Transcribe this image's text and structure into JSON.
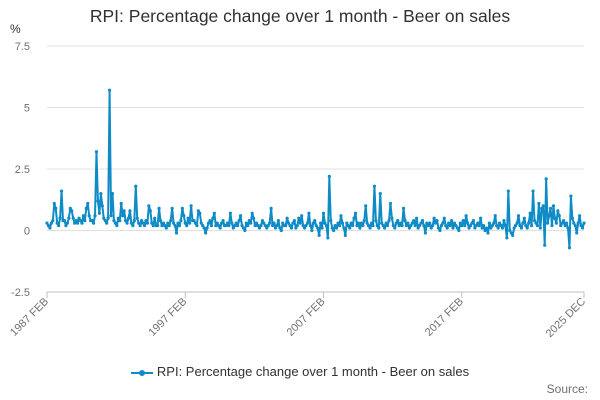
{
  "chart_data": {
    "type": "line",
    "title": "RPI: Percentage change over 1 month - Beer on sales",
    "ylabel": "%",
    "ylim": [
      -2.5,
      7.5
    ],
    "yticks": [
      "-2.5",
      "0",
      "2.5",
      "5",
      "7.5"
    ],
    "xticks": [
      "1987 FEB",
      "1997 FEB",
      "2007 FEB",
      "2017 FEB",
      "2025 DEC"
    ],
    "x_start": "1987 FEB",
    "x_end": "2025 DEC",
    "grid": "horizontal",
    "legend_position": "bottom",
    "color": "#0F8BC6",
    "series": [
      {
        "name": "RPI: Percentage change over 1 month - Beer on sales",
        "values": [
          0.3,
          0.2,
          0.1,
          0.3,
          0.4,
          1.1,
          0.9,
          0.3,
          0.2,
          0.5,
          1.6,
          0.4,
          0.4,
          0.2,
          0.3,
          0.5,
          0.9,
          0.8,
          0.5,
          0.3,
          0.4,
          0.3,
          0.5,
          0.4,
          0.3,
          0.6,
          0.4,
          0.9,
          1.1,
          0.6,
          0.4,
          0.4,
          0.3,
          0.6,
          3.2,
          1.2,
          0.7,
          1.5,
          1.0,
          0.5,
          0.4,
          0.3,
          0.5,
          5.7,
          0.6,
          1.5,
          0.4,
          0.3,
          0.2,
          0.5,
          0.4,
          1.1,
          0.6,
          0.8,
          0.4,
          0.3,
          0.5,
          0.8,
          0.3,
          0.2,
          0.4,
          1.8,
          0.5,
          0.3,
          0.2,
          0.4,
          0.3,
          0.2,
          0.4,
          0.3,
          1.0,
          0.8,
          0.3,
          0.2,
          0.5,
          0.2,
          0.2,
          0.9,
          0.4,
          0.2,
          0.3,
          0.2,
          0.1,
          0.3,
          0.2,
          0.4,
          0.9,
          0.3,
          0.2,
          -0.1,
          0.3,
          0.2,
          0.4,
          0.9,
          0.6,
          0.3,
          0.2,
          0.5,
          0.3,
          1.0,
          0.4,
          0.4,
          0.3,
          0.2,
          0.8,
          0.7,
          0.3,
          0.2,
          0.1,
          -0.1,
          0.1,
          0.3,
          0.4,
          0.2,
          0.5,
          0.7,
          0.2,
          0.3,
          0.2,
          0.1,
          0.3,
          0.4,
          0.2,
          0.2,
          0.3,
          0.2,
          0.7,
          0.3,
          0.1,
          0.2,
          0.3,
          0.2,
          0.4,
          0.6,
          0.2,
          0.1,
          0.0,
          0.3,
          0.2,
          0.4,
          0.3,
          0.7,
          0.5,
          0.2,
          0.3,
          0.2,
          0.1,
          0.2,
          0.4,
          0.3,
          0.2,
          0.1,
          0.2,
          0.3,
          0.9,
          0.2,
          0.3,
          0.1,
          0.2,
          0.4,
          0.1,
          0.0,
          0.3,
          0.2,
          0.2,
          0.5,
          0.3,
          0.2,
          0.1,
          0.3,
          0.4,
          0.1,
          0.2,
          0.5,
          0.3,
          0.6,
          0.2,
          0.1,
          0.2,
          0.3,
          0.7,
          0.2,
          0.0,
          0.3,
          0.4,
          0.2,
          0.1,
          -0.2,
          0.3,
          0.1,
          0.7,
          0.3,
          0.2,
          -0.3,
          2.2,
          0.4,
          0.1,
          0.0,
          0.2,
          0.1,
          0.3,
          0.2,
          0.6,
          0.3,
          0.1,
          -0.2,
          0.3,
          0.2,
          0.1,
          0.3,
          0.2,
          0.5,
          0.7,
          0.2,
          0.3,
          0.1,
          0.3,
          0.2,
          0.4,
          1.0,
          0.3,
          0.2,
          0.1,
          0.3,
          0.2,
          1.8,
          0.4,
          0.2,
          0.1,
          1.5,
          0.3,
          0.2,
          0.1,
          0.3,
          0.2,
          0.4,
          1.1,
          0.5,
          0.2,
          0.1,
          0.3,
          0.4,
          0.2,
          0.3,
          0.2,
          0.9,
          0.4,
          0.2,
          0.3,
          0.1,
          0.2,
          0.3,
          0.4,
          0.2,
          0.5,
          0.1,
          0.2,
          0.3,
          0.4,
          0.2,
          -0.1,
          0.3,
          0.2,
          0.3,
          0.1,
          0.2,
          0.5,
          0.3,
          0.4,
          0.1,
          0.0,
          0.2,
          0.3,
          0.5,
          0.2,
          0.1,
          0.3,
          0.2,
          0.4,
          0.1,
          0.3,
          0.2,
          0.1,
          0.0,
          0.3,
          0.2,
          0.4,
          0.2,
          0.6,
          0.3,
          0.1,
          0.2,
          0.3,
          0.4,
          0.1,
          0.2,
          0.3,
          0.2,
          0.5,
          0.1,
          0.2,
          0.0,
          0.1,
          -0.1,
          0.3,
          0.1,
          0.2,
          0.3,
          0.6,
          0.2,
          0.1,
          0.3,
          0.2,
          0.1,
          0.4,
          0.2,
          -0.3,
          1.6,
          0.0,
          -0.1,
          -0.2,
          0.1,
          0.2,
          0.3,
          0.6,
          0.2,
          0.1,
          0.3,
          0.5,
          0.2,
          0.1,
          0.3,
          0.7,
          0.2,
          1.6,
          0.4,
          0.3,
          0.2,
          1.1,
          0.1,
          0.9,
          1.0,
          -0.6,
          2.1,
          0.3,
          0.6,
          0.9,
          0.2,
          1.0,
          0.5,
          0.3,
          0.8,
          0.6,
          0.2,
          0.3,
          0.4,
          0.2,
          0.3,
          0.1,
          -0.7,
          1.4,
          0.5,
          0.3,
          0.2,
          -0.1,
          0.3,
          0.6,
          0.2,
          0.1,
          0.3
        ]
      }
    ]
  },
  "legend": {
    "label": "RPI: Percentage change over 1 month - Beer on sales"
  },
  "source": {
    "label": "Source:"
  }
}
